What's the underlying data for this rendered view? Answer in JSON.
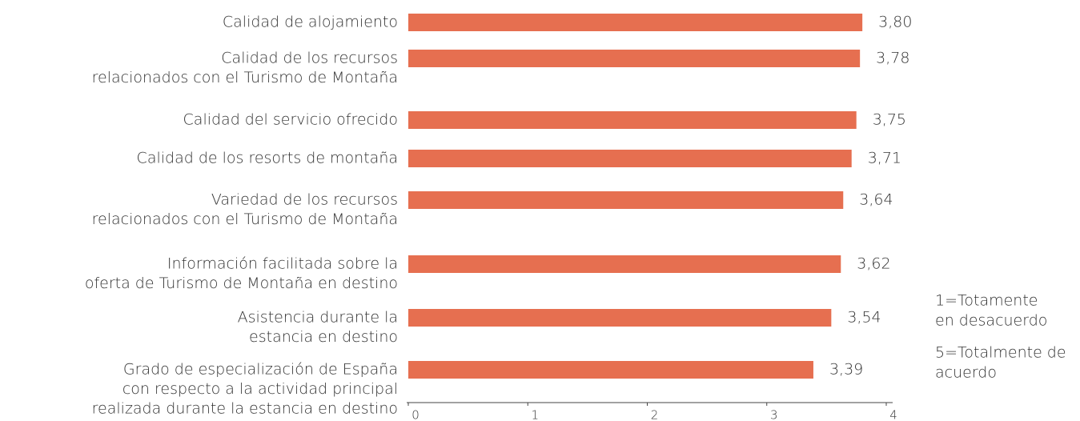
{
  "chart_data": {
    "type": "bar",
    "orientation": "horizontal",
    "categories": [
      [
        "Calidad de alojamiento"
      ],
      [
        "Calidad de los recursos",
        "relacionados con el Turismo de Montaña"
      ],
      [
        "Calidad del servicio ofrecido"
      ],
      [
        "Calidad de los resorts de montaña"
      ],
      [
        "Variedad de los recursos",
        "relacionados con el Turismo de Montaña"
      ],
      [
        "Información facilitada sobre la",
        "oferta de Turismo de Montaña en destino"
      ],
      [
        "Asistencia durante la",
        "estancia en destino"
      ],
      [
        "Grado de especialización de España",
        "con respecto a la actividad principal",
        "realizada durante la estancia en destino"
      ]
    ],
    "values": [
      3.8,
      3.78,
      3.75,
      3.71,
      3.64,
      3.62,
      3.54,
      3.39
    ],
    "value_labels": [
      "3,80",
      "3,78",
      "3,75",
      "3,71",
      "3,64",
      "3,62",
      "3,54",
      "3,39"
    ],
    "color": "#e66f50",
    "xlim": [
      0,
      4
    ],
    "xticks": [
      0,
      1,
      2,
      3,
      4
    ],
    "annotations": [
      [
        "1=Totamente",
        "en desacuerdo"
      ],
      [
        "5=Totalmente de",
        "acuerdo"
      ]
    ]
  }
}
